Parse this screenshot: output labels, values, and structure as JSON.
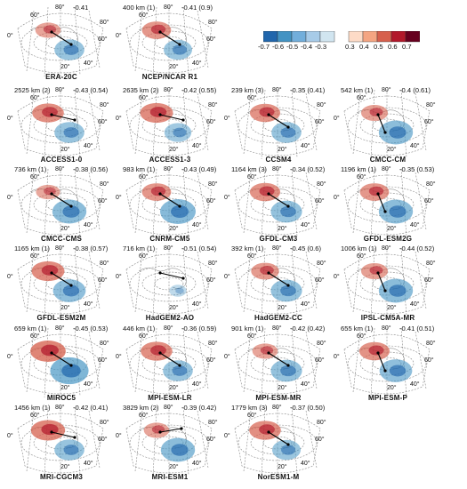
{
  "colorbar": {
    "negative_ticks": [
      "-0.7",
      "-0.6",
      "-0.5",
      "-0.4",
      "-0.3"
    ],
    "positive_ticks": [
      "0.3",
      "0.4",
      "0.5",
      "0.6",
      "0.7"
    ],
    "negative_colors": [
      "#2166ac",
      "#4393c3",
      "#72aedb",
      "#a7cbe8",
      "#d1e5f0"
    ],
    "positive_colors": [
      "#fddbc7",
      "#f4a582",
      "#d6604d",
      "#b2182b",
      "#67001f"
    ]
  },
  "axis_labels": {
    "lat80": "80°",
    "lat60": "60°",
    "lon0": "0°",
    "lon20": "20°",
    "lon40": "40°",
    "lon60": "60°",
    "lon80": "80°"
  },
  "panels": [
    {
      "name": "ERA-20C",
      "distance": "",
      "corr": "-0.41",
      "pos": 0.45,
      "neg": 0.55,
      "dir": "se"
    },
    {
      "name": "NCEP/NCAR R1",
      "distance": "400 km (1)",
      "corr": "-0.41 (0.9)",
      "pos": 0.6,
      "neg": 0.5,
      "dir": "se"
    },
    {
      "name": "ACCESS1-0",
      "distance": "2525 km (2)",
      "corr": "-0.43 (0.54)",
      "pos": 0.7,
      "neg": 0.55,
      "dir": "e"
    },
    {
      "name": "ACCESS1-3",
      "distance": "2635 km (2)",
      "corr": "-0.42 (0.55)",
      "pos": 0.75,
      "neg": 0.45,
      "dir": "e"
    },
    {
      "name": "CCSM4",
      "distance": "239 km (3)",
      "corr": "-0.35 (0.41)",
      "pos": 0.65,
      "neg": 0.55,
      "dir": "se"
    },
    {
      "name": "CMCC-CM",
      "distance": "542 km (1)",
      "corr": "-0.4 (0.61)",
      "pos": 0.5,
      "neg": 0.7,
      "dir": "s"
    },
    {
      "name": "CMCC-CMS",
      "distance": "736 km (1)",
      "corr": "-0.38 (0.56)",
      "pos": 0.4,
      "neg": 0.7,
      "dir": "se"
    },
    {
      "name": "CNRM-CM5",
      "distance": "983 km (1)",
      "corr": "-0.43 (0.49)",
      "pos": 0.6,
      "neg": 0.75,
      "dir": "se"
    },
    {
      "name": "GFDL-CM3",
      "distance": "1164 km (3)",
      "corr": "-0.34 (0.52)",
      "pos": 0.65,
      "neg": 0.6,
      "dir": "se"
    },
    {
      "name": "GFDL-ESM2G",
      "distance": "1196 km (1)",
      "corr": "-0.35 (0.53)",
      "pos": 0.6,
      "neg": 0.7,
      "dir": "s"
    },
    {
      "name": "GFDL-ESM2M",
      "distance": "1165 km (1)",
      "corr": "-0.38 (0.57)",
      "pos": 0.75,
      "neg": 0.65,
      "dir": "se"
    },
    {
      "name": "HadGEM2-AO",
      "distance": "716 km (1)",
      "corr": "-0.51 (0.54)",
      "pos": 0.0,
      "neg": 0.1,
      "dir": "e"
    },
    {
      "name": "HadGEM2-CC",
      "distance": "392 km (1)",
      "corr": "-0.45 (0.6)",
      "pos": 0.55,
      "neg": 0.6,
      "dir": "se"
    },
    {
      "name": "IPSL-CM5A-MR",
      "distance": "1006 km (1)",
      "corr": "-0.44 (0.52)",
      "pos": 0.5,
      "neg": 0.7,
      "dir": "s"
    },
    {
      "name": "MIROC5",
      "distance": "659 km (1)",
      "corr": "-0.45 (0.53)",
      "pos": 0.85,
      "neg": 0.85,
      "dir": "se"
    },
    {
      "name": "MPI-ESM-LR",
      "distance": "446 km (1)",
      "corr": "-0.36 (0.59)",
      "pos": 0.7,
      "neg": 0.55,
      "dir": "se"
    },
    {
      "name": "MPI-ESM-MR",
      "distance": "901 km (1)",
      "corr": "-0.42 (0.42)",
      "pos": 0.45,
      "neg": 0.6,
      "dir": "se"
    },
    {
      "name": "MPI-ESM-P",
      "distance": "655 km (1)",
      "corr": "-0.41 (0.51)",
      "pos": 0.65,
      "neg": 0.65,
      "dir": "s"
    },
    {
      "name": "MRI-CGCM3",
      "distance": "1456 km (1)",
      "corr": "-0.42 (0.41)",
      "pos": 0.8,
      "neg": 0.55,
      "dir": "e"
    },
    {
      "name": "MRI-ESM1",
      "distance": "3829 km (2)",
      "corr": "-0.39 (0.42)",
      "pos": 0.45,
      "neg": 0.7,
      "dir": "ne"
    },
    {
      "name": "NorESM1-M",
      "distance": "1779 km (3)",
      "corr": "-0.37 (0.50)",
      "pos": 0.7,
      "neg": 0.5,
      "dir": "se"
    }
  ]
}
